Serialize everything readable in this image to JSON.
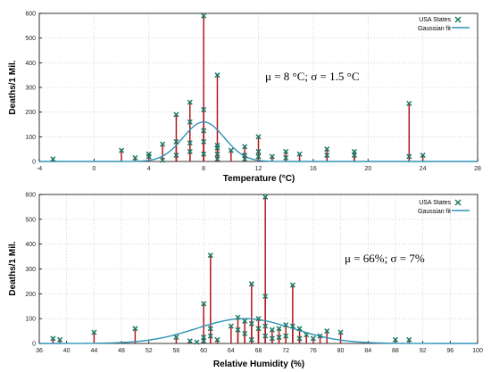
{
  "chart_data": [
    {
      "type": "scatter",
      "xlabel": "Temperature (°C)",
      "ylabel": "Deaths/1 Mil.",
      "xlim": [
        -4,
        28
      ],
      "ylim": [
        0,
        600
      ],
      "xticks": [
        -4,
        0,
        4,
        8,
        12,
        16,
        20,
        24,
        28
      ],
      "yticks": [
        0,
        100,
        200,
        300,
        400,
        500,
        600
      ],
      "x_tick_labels": [
        "-4",
        "0",
        "4",
        "8",
        "12",
        "16",
        "20",
        "24",
        "28"
      ],
      "y_tick_labels": [
        "0",
        "100",
        "200",
        "300",
        "400",
        "500",
        "600"
      ],
      "grid": true,
      "legend_position": "top-right",
      "annotation": "μ = 8 °C; σ = 1.5 °C",
      "series": [
        {
          "name": "USA States",
          "style": "impulse-points",
          "x": [
            -3,
            2,
            3,
            4,
            4,
            5,
            5,
            6,
            6,
            6,
            7,
            7,
            7,
            7,
            8,
            8,
            8,
            8,
            8,
            9,
            9,
            9,
            9,
            9,
            10,
            11,
            11,
            11,
            12,
            12,
            12,
            13,
            14,
            14,
            15,
            17,
            17,
            19,
            19,
            23,
            23,
            24
          ],
          "y": [
            10,
            45,
            15,
            30,
            20,
            70,
            5,
            190,
            80,
            25,
            240,
            160,
            75,
            40,
            590,
            210,
            125,
            80,
            30,
            350,
            65,
            55,
            30,
            10,
            45,
            60,
            25,
            10,
            100,
            40,
            20,
            20,
            40,
            15,
            30,
            50,
            25,
            40,
            25,
            235,
            20,
            25
          ]
        },
        {
          "name": "Gaussian fit",
          "style": "line",
          "mu": 8,
          "sigma": 1.5,
          "amplitude": 160
        }
      ]
    },
    {
      "type": "scatter",
      "xlabel": "Relative Humidity (%)",
      "ylabel": "Deaths/1 Mil.",
      "xlim": [
        36,
        100
      ],
      "ylim": [
        0,
        600
      ],
      "xticks": [
        36,
        40,
        44,
        48,
        52,
        56,
        60,
        64,
        68,
        72,
        76,
        80,
        84,
        88,
        92,
        96,
        100
      ],
      "yticks": [
        0,
        100,
        200,
        300,
        400,
        500,
        600
      ],
      "x_tick_labels": [
        "36",
        "40",
        "44",
        "48",
        "52",
        "56",
        "60",
        "64",
        "68",
        "72",
        "76",
        "80",
        "84",
        "88",
        "92",
        "96",
        "100"
      ],
      "y_tick_labels": [
        "0",
        "100",
        "200",
        "300",
        "400",
        "500",
        "600"
      ],
      "grid": true,
      "legend_position": "top-right",
      "annotation": "μ = 66%; σ = 7%",
      "series": [
        {
          "name": "USA States",
          "style": "impulse-points",
          "x": [
            38,
            39,
            44,
            50,
            56,
            58,
            59,
            60,
            60,
            60,
            61,
            61,
            61,
            62,
            64,
            65,
            65,
            66,
            66,
            67,
            67,
            67,
            68,
            68,
            69,
            69,
            69,
            69,
            70,
            70,
            71,
            71,
            72,
            72,
            73,
            73,
            74,
            74,
            75,
            76,
            77,
            78,
            80,
            88,
            90
          ],
          "y": [
            20,
            15,
            45,
            60,
            25,
            10,
            5,
            160,
            25,
            10,
            355,
            60,
            30,
            15,
            70,
            105,
            55,
            90,
            40,
            240,
            80,
            15,
            100,
            60,
            590,
            190,
            70,
            30,
            55,
            20,
            60,
            25,
            75,
            30,
            235,
            70,
            60,
            20,
            35,
            20,
            30,
            50,
            45,
            15,
            15
          ]
        },
        {
          "name": "Gaussian fit",
          "style": "line",
          "mu": 66,
          "sigma": 7,
          "amplitude": 100
        }
      ]
    }
  ]
}
